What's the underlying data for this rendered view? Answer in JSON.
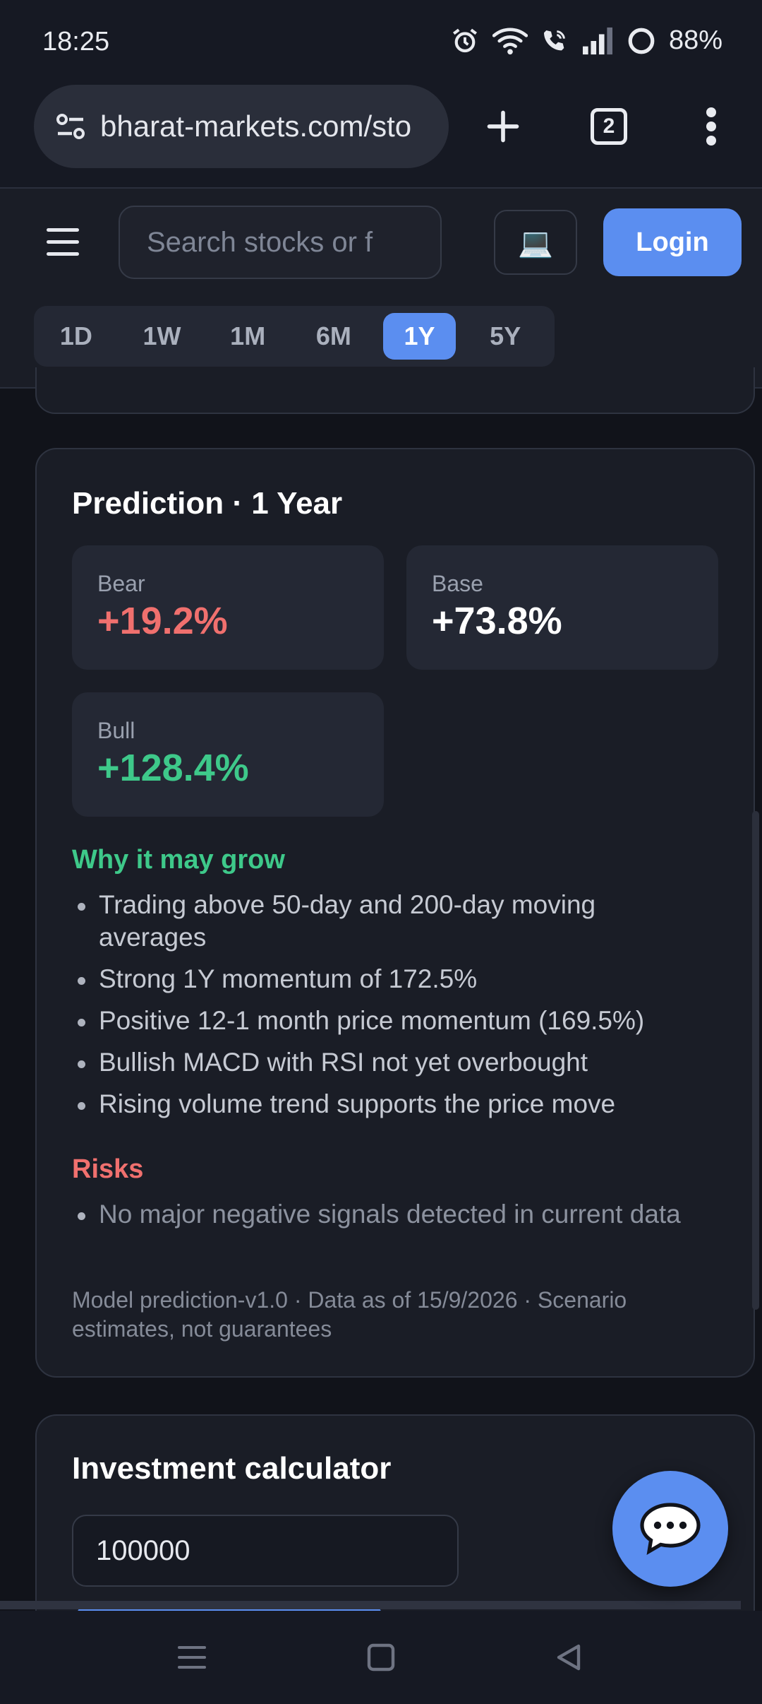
{
  "status_bar": {
    "time": "18:25",
    "battery": "88%"
  },
  "browser": {
    "url": "bharat-markets.com/sto",
    "tab_count": "2"
  },
  "header": {
    "search_placeholder": "Search stocks or f",
    "login_label": "Login",
    "theme_icon": "💻"
  },
  "timeframes": {
    "items": [
      "1D",
      "1W",
      "1M",
      "6M",
      "1Y",
      "5Y"
    ],
    "selected": "1Y"
  },
  "prediction": {
    "title": "Prediction · 1 Year",
    "scenarios": {
      "bear": {
        "label": "Bear",
        "value": "+19.2%"
      },
      "base": {
        "label": "Base",
        "value": "+73.8%"
      },
      "bull": {
        "label": "Bull",
        "value": "+128.4%"
      }
    },
    "growth_heading": "Why it may grow",
    "growth_points": [
      "Trading above 50-day and 200-day moving averages",
      "Strong 1Y momentum of 172.5%",
      "Positive 12-1 month price momentum (169.5%)",
      "Bullish MACD with RSI not yet overbought",
      "Rising volume trend supports the price move"
    ],
    "risks_heading": "Risks",
    "risk_points": [
      "No major negative signals detected in current data"
    ],
    "footnote": "Model prediction-v1.0 · Data as of 15/9/2026 · Scenario estimates, not guarantees"
  },
  "calculator": {
    "title": "Investment calculator",
    "amount": "100000"
  },
  "colors": {
    "accent": "#5b8ef0",
    "bear": "#f0706e",
    "bull": "#3ec98a",
    "card_bg": "#1a1d26",
    "page_bg": "#11131a"
  }
}
